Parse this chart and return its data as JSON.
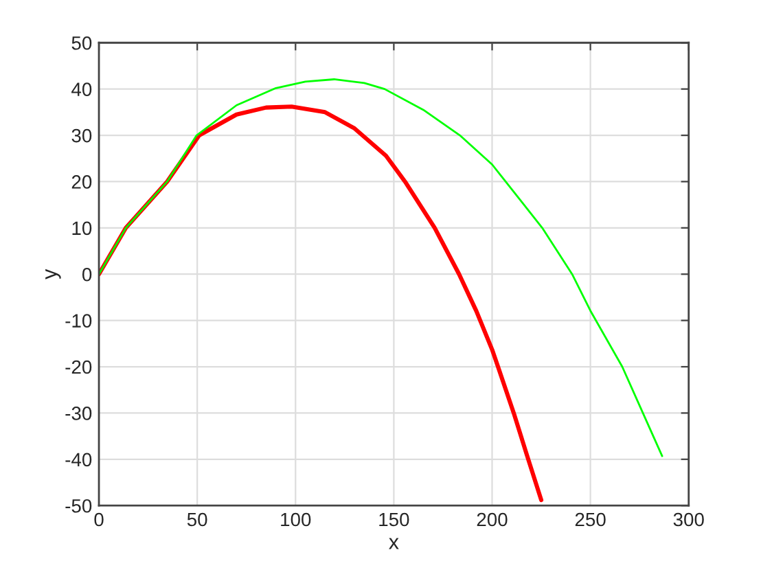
{
  "chart_data": {
    "type": "line",
    "xlabel": "x",
    "ylabel": "y",
    "xlim": [
      0,
      300
    ],
    "ylim": [
      -50,
      50
    ],
    "xticks": [
      0,
      50,
      100,
      150,
      200,
      250,
      300
    ],
    "yticks": [
      -50,
      -40,
      -30,
      -20,
      -10,
      0,
      10,
      20,
      30,
      40,
      50
    ],
    "grid": true,
    "marker": "none",
    "line_style": "solid",
    "series": [
      {
        "color": "#ff0000",
        "x": [
          0,
          13.7,
          34.7,
          51,
          70,
          85,
          98,
          115,
          130,
          146,
          155.7,
          170.8,
          183.2,
          192,
          200,
          203,
          211,
          218,
          225
        ],
        "values": [
          0,
          10,
          20,
          30,
          34.5,
          36,
          36.2,
          35,
          31.5,
          25.6,
          20,
          10,
          0,
          -8,
          -16.3,
          -20,
          -30,
          -39.5,
          -48.8
        ]
      },
      {
        "color": "#00ff00",
        "x": [
          0,
          13.7,
          34.7,
          49.7,
          70,
          90,
          105,
          119.6,
          135,
          145.3,
          165,
          183.6,
          200,
          225.5,
          240.7,
          250,
          266.2,
          276.7,
          286.5
        ],
        "values": [
          0,
          10,
          20,
          30,
          36.5,
          40.2,
          41.6,
          42.1,
          41.3,
          40,
          35.5,
          30,
          23.7,
          10,
          0,
          -7.9,
          -20,
          -30,
          -39.3
        ]
      }
    ]
  }
}
